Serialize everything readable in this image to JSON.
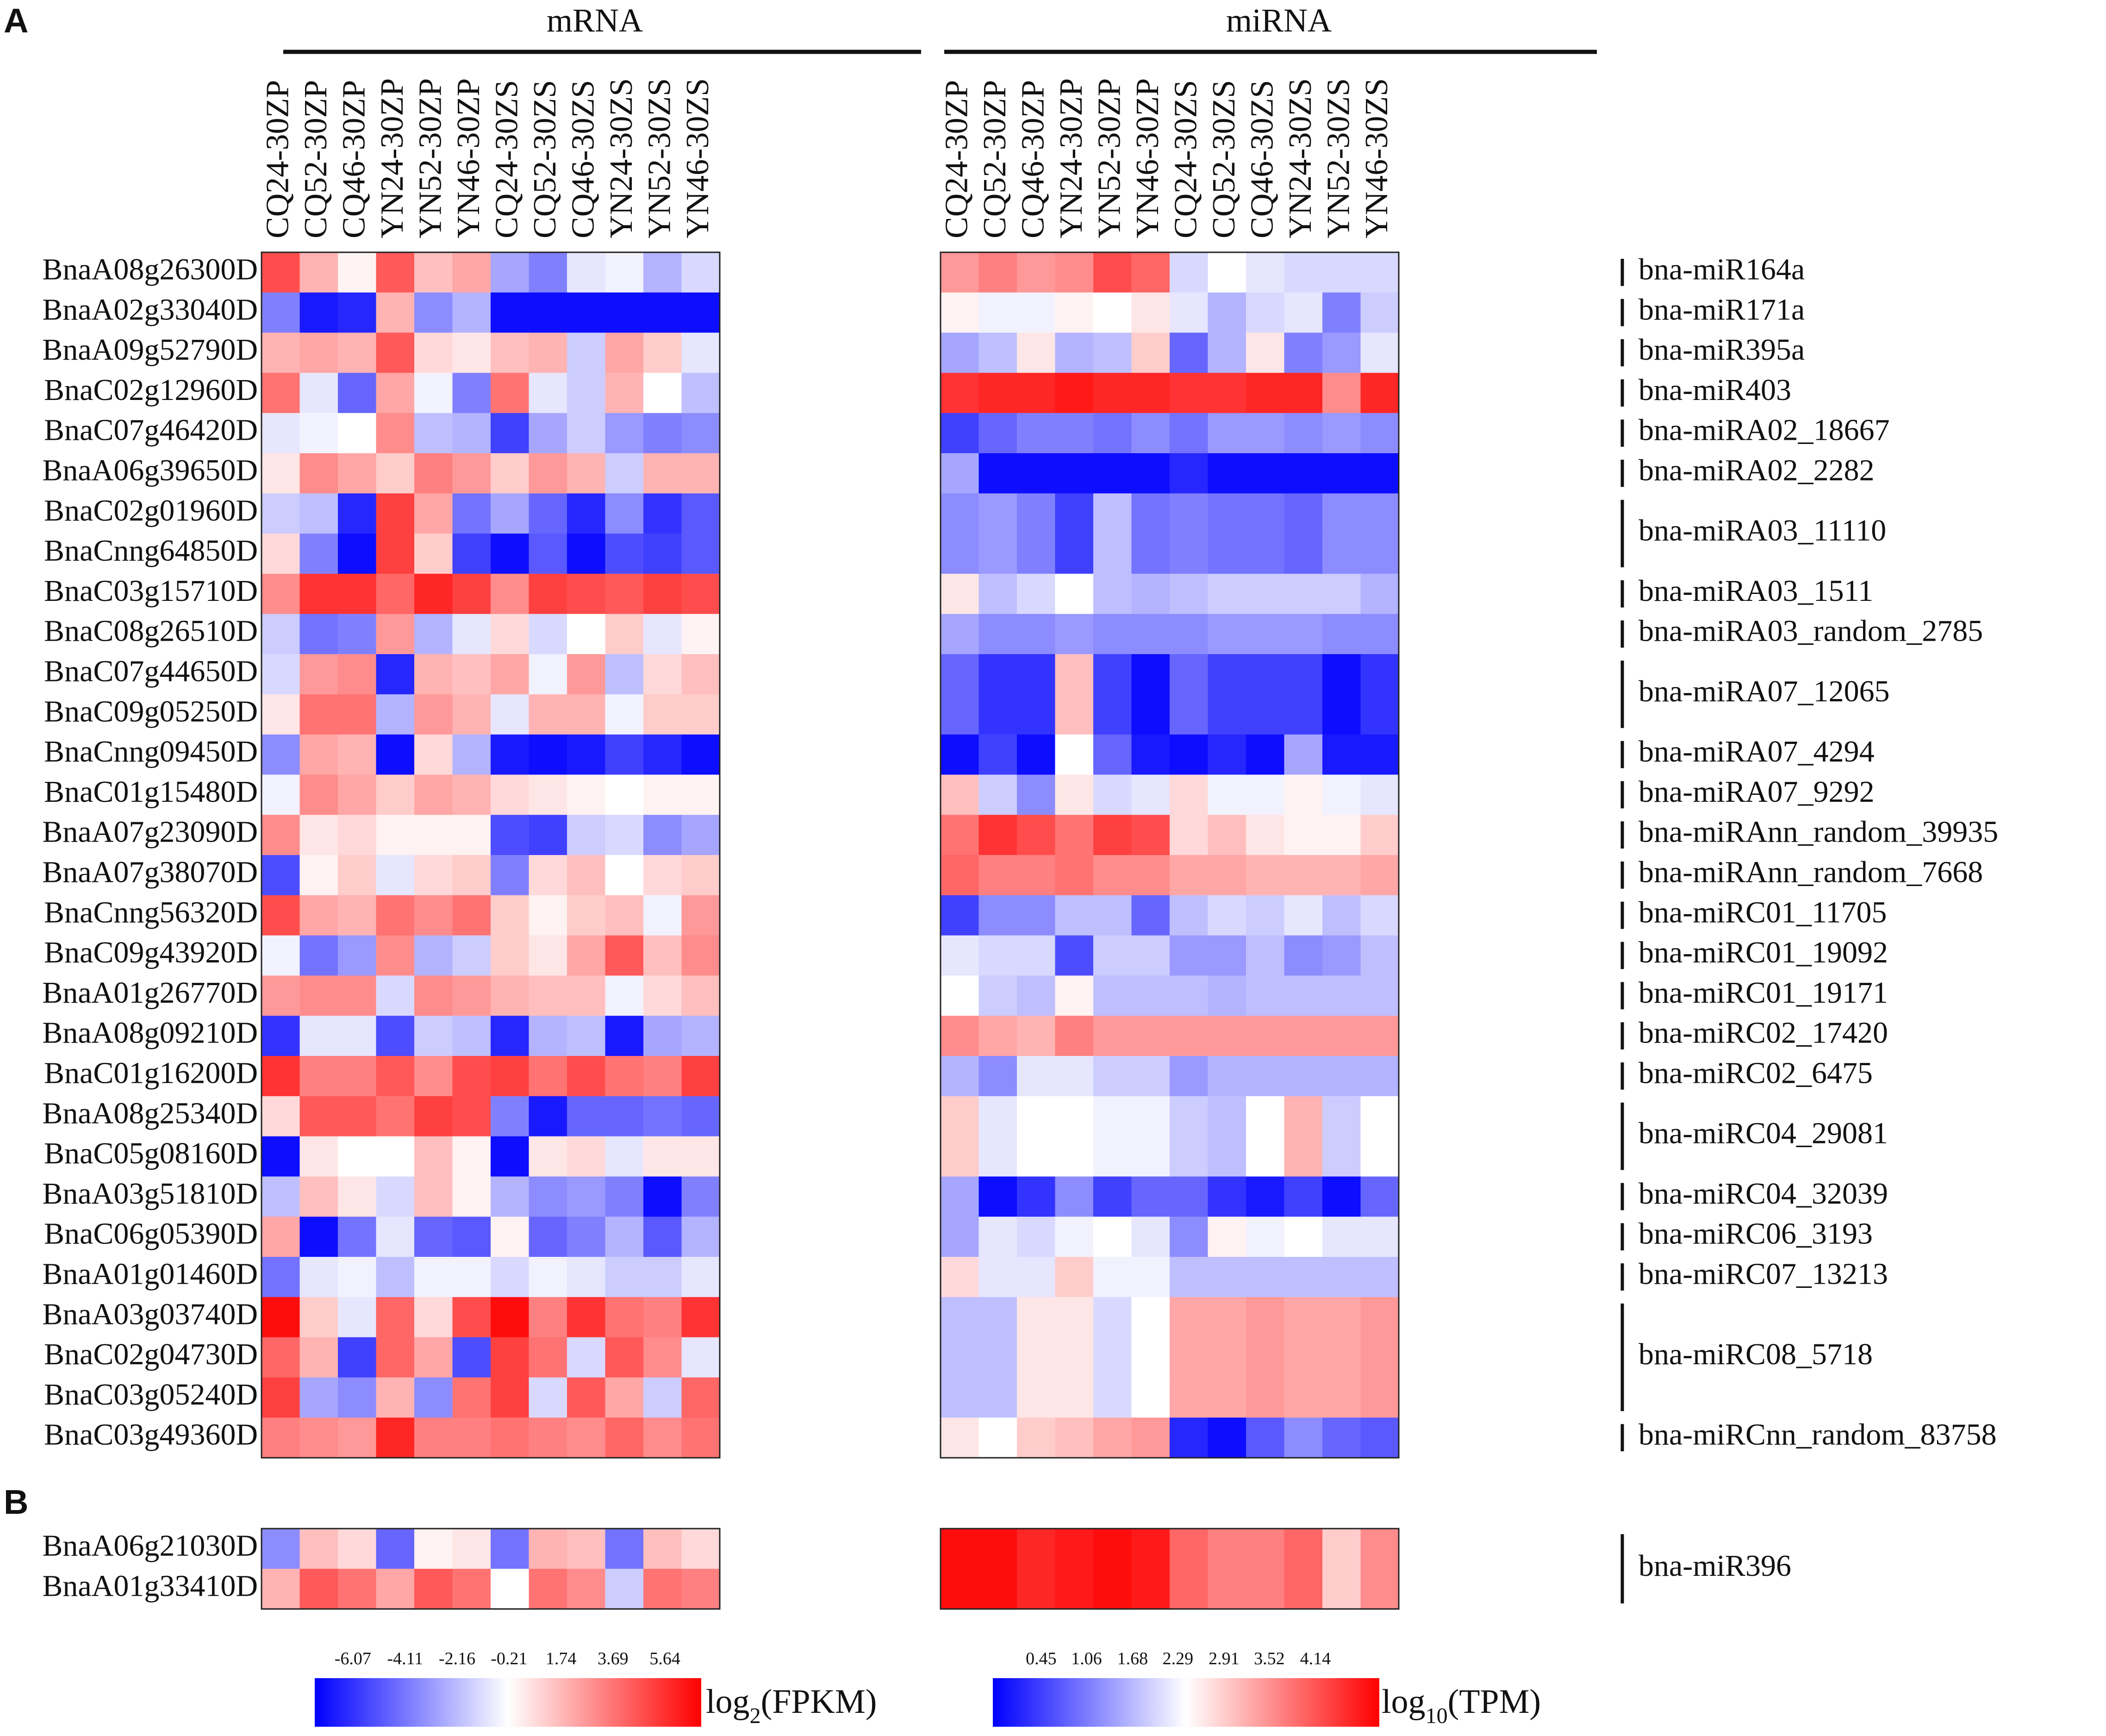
{
  "chart_data": {
    "type": "heatmap",
    "panel_labels": [
      "A",
      "B"
    ],
    "group_titles": {
      "mrna": "mRNA",
      "mirna": "miRNA"
    },
    "columns": [
      "CQ24-30ZP",
      "CQ52-30ZP",
      "CQ46-30ZP",
      "YN24-30ZP",
      "YN52-30ZP",
      "YN46-30ZP",
      "CQ24-30ZS",
      "CQ52-30ZS",
      "CQ46-30ZS",
      "YN24-30ZS",
      "YN52-30ZS",
      "YN46-30ZS"
    ],
    "panel_a": {
      "genes": [
        "BnaA08g26300D",
        "BnaA02g33040D",
        "BnaA09g52790D",
        "BnaC02g12960D",
        "BnaC07g46420D",
        "BnaA06g39650D",
        "BnaC02g01960D",
        "BnaCnng64850D",
        "BnaC03g15710D",
        "BnaC08g26510D",
        "BnaC07g44650D",
        "BnaC09g05250D",
        "BnaCnng09450D",
        "BnaC01g15480D",
        "BnaA07g23090D",
        "BnaA07g38070D",
        "BnaCnng56320D",
        "BnaC09g43920D",
        "BnaA01g26770D",
        "BnaA08g09210D",
        "BnaC01g16200D",
        "BnaA08g25340D",
        "BnaC05g08160D",
        "BnaA03g51810D",
        "BnaC06g05390D",
        "BnaA01g01460D",
        "BnaA03g03740D",
        "BnaC02g04730D",
        "BnaC03g05240D",
        "BnaC03g49360D"
      ],
      "mrna_values": [
        [
          0.7,
          0.3,
          0.05,
          0.65,
          0.25,
          0.35,
          -0.35,
          -0.5,
          -0.1,
          -0.05,
          -0.3,
          -0.15
        ],
        [
          -0.5,
          -0.9,
          -0.85,
          0.3,
          -0.45,
          -0.3,
          -0.95,
          -0.95,
          -0.95,
          -0.95,
          -0.95,
          -0.95
        ],
        [
          0.3,
          0.35,
          0.3,
          0.65,
          0.15,
          0.1,
          0.25,
          0.3,
          -0.2,
          0.35,
          0.2,
          -0.1
        ],
        [
          0.55,
          -0.1,
          -0.6,
          0.35,
          -0.05,
          -0.5,
          0.55,
          -0.1,
          -0.2,
          0.3,
          0.0,
          -0.25
        ],
        [
          -0.1,
          -0.05,
          0.0,
          0.45,
          -0.25,
          -0.3,
          -0.75,
          -0.35,
          -0.2,
          -0.4,
          -0.5,
          -0.45
        ],
        [
          0.1,
          0.45,
          0.35,
          0.2,
          0.5,
          0.4,
          0.2,
          0.4,
          0.3,
          -0.2,
          0.3,
          0.3
        ],
        [
          -0.2,
          -0.25,
          -0.85,
          0.75,
          0.35,
          -0.55,
          -0.35,
          -0.6,
          -0.85,
          -0.45,
          -0.8,
          -0.65
        ],
        [
          0.15,
          -0.5,
          -0.95,
          0.75,
          0.2,
          -0.75,
          -0.95,
          -0.65,
          -0.95,
          -0.7,
          -0.75,
          -0.65
        ],
        [
          0.45,
          0.8,
          0.8,
          0.6,
          0.85,
          0.75,
          0.45,
          0.75,
          0.7,
          0.65,
          0.75,
          0.7
        ],
        [
          -0.2,
          -0.55,
          -0.5,
          0.4,
          -0.3,
          -0.1,
          0.15,
          -0.15,
          0.0,
          0.2,
          -0.1,
          0.05
        ],
        [
          -0.15,
          0.4,
          0.45,
          -0.85,
          0.3,
          0.25,
          0.35,
          -0.05,
          0.4,
          -0.25,
          0.15,
          0.25
        ],
        [
          0.1,
          0.55,
          0.55,
          -0.3,
          0.4,
          0.3,
          -0.1,
          0.3,
          0.3,
          -0.05,
          0.2,
          0.2
        ],
        [
          -0.45,
          0.35,
          0.3,
          -0.95,
          0.15,
          -0.3,
          -0.9,
          -0.95,
          -0.9,
          -0.75,
          -0.85,
          -0.95
        ],
        [
          -0.05,
          0.45,
          0.35,
          0.2,
          0.35,
          0.3,
          0.15,
          0.1,
          0.05,
          0.0,
          0.05,
          0.05
        ],
        [
          0.45,
          0.1,
          0.15,
          0.05,
          0.05,
          0.05,
          -0.7,
          -0.75,
          -0.2,
          -0.15,
          -0.45,
          -0.35
        ],
        [
          -0.7,
          0.05,
          0.2,
          -0.1,
          0.15,
          0.2,
          -0.5,
          0.15,
          0.25,
          0.0,
          0.15,
          0.2
        ],
        [
          0.7,
          0.35,
          0.3,
          0.55,
          0.45,
          0.55,
          0.2,
          0.05,
          0.2,
          0.25,
          -0.05,
          0.4
        ],
        [
          -0.05,
          -0.55,
          -0.4,
          0.45,
          -0.3,
          -0.2,
          0.2,
          0.1,
          0.35,
          0.65,
          0.25,
          0.45
        ],
        [
          0.4,
          0.45,
          0.45,
          -0.15,
          0.45,
          0.4,
          0.3,
          0.25,
          0.25,
          -0.05,
          0.15,
          0.25
        ],
        [
          -0.8,
          -0.1,
          -0.1,
          -0.7,
          -0.2,
          -0.25,
          -0.85,
          -0.3,
          -0.25,
          -0.9,
          -0.35,
          -0.3
        ],
        [
          0.8,
          0.5,
          0.5,
          0.65,
          0.45,
          0.7,
          0.75,
          0.55,
          0.7,
          0.55,
          0.5,
          0.75
        ],
        [
          0.15,
          0.65,
          0.65,
          0.55,
          0.75,
          0.7,
          -0.5,
          -0.9,
          -0.6,
          -0.6,
          -0.55,
          -0.6
        ],
        [
          -0.95,
          0.1,
          0.0,
          0.0,
          0.25,
          0.05,
          -0.95,
          0.1,
          0.15,
          -0.1,
          0.1,
          0.1
        ],
        [
          -0.25,
          0.25,
          0.1,
          -0.15,
          0.25,
          0.05,
          -0.3,
          -0.45,
          -0.4,
          -0.5,
          -0.95,
          -0.5
        ],
        [
          0.35,
          -0.95,
          -0.55,
          -0.1,
          -0.6,
          -0.65,
          0.05,
          -0.6,
          -0.5,
          -0.3,
          -0.65,
          -0.3
        ],
        [
          -0.55,
          -0.1,
          -0.05,
          -0.25,
          -0.05,
          -0.05,
          -0.15,
          -0.05,
          -0.1,
          -0.2,
          -0.2,
          -0.1
        ],
        [
          0.95,
          0.2,
          -0.1,
          0.6,
          0.15,
          0.7,
          0.95,
          0.5,
          0.8,
          0.55,
          0.5,
          0.8
        ],
        [
          0.6,
          0.3,
          -0.75,
          0.6,
          0.35,
          -0.7,
          0.75,
          0.55,
          -0.15,
          0.65,
          0.45,
          -0.1
        ],
        [
          0.75,
          -0.35,
          -0.45,
          0.3,
          -0.45,
          0.55,
          0.75,
          -0.15,
          0.65,
          0.35,
          -0.2,
          0.6
        ],
        [
          0.5,
          0.45,
          0.4,
          0.85,
          0.5,
          0.5,
          0.55,
          0.5,
          0.45,
          0.6,
          0.45,
          0.55
        ]
      ],
      "mirnas": [
        {
          "name": "bna-miR164a",
          "rows": 1
        },
        {
          "name": "bna-miR171a",
          "rows": 1
        },
        {
          "name": "bna-miR395a",
          "rows": 1
        },
        {
          "name": "bna-miR403",
          "rows": 1
        },
        {
          "name": "bna-miRA02_18667",
          "rows": 1
        },
        {
          "name": "bna-miRA02_2282",
          "rows": 1
        },
        {
          "name": "bna-miRA03_11110",
          "rows": 2
        },
        {
          "name": "bna-miRA03_1511",
          "rows": 1
        },
        {
          "name": "bna-miRA03_random_2785",
          "rows": 1
        },
        {
          "name": "bna-miRA07_12065",
          "rows": 2
        },
        {
          "name": "bna-miRA07_4294",
          "rows": 1
        },
        {
          "name": "bna-miRA07_9292",
          "rows": 1
        },
        {
          "name": "bna-miRAnn_random_39935",
          "rows": 1
        },
        {
          "name": "bna-miRAnn_random_7668",
          "rows": 1
        },
        {
          "name": "bna-miRC01_11705",
          "rows": 1
        },
        {
          "name": "bna-miRC01_19092",
          "rows": 1
        },
        {
          "name": "bna-miRC01_19171",
          "rows": 1
        },
        {
          "name": "bna-miRC02_17420",
          "rows": 1
        },
        {
          "name": "bna-miRC02_6475",
          "rows": 1
        },
        {
          "name": "bna-miRC04_29081",
          "rows": 2
        },
        {
          "name": "bna-miRC04_32039",
          "rows": 1
        },
        {
          "name": "bna-miRC06_3193",
          "rows": 1
        },
        {
          "name": "bna-miRC07_13213",
          "rows": 1
        },
        {
          "name": "bna-miRC08_5718",
          "rows": 3
        },
        {
          "name": "bna-miRCnn_random_83758",
          "rows": 1
        }
      ],
      "mirna_values": [
        [
          0.4,
          0.5,
          0.4,
          0.45,
          0.7,
          0.6,
          -0.15,
          0.0,
          -0.1,
          -0.15,
          -0.15,
          -0.15
        ],
        [
          0.05,
          -0.05,
          -0.05,
          0.05,
          0.0,
          0.1,
          -0.1,
          -0.3,
          -0.15,
          -0.1,
          -0.5,
          -0.2
        ],
        [
          -0.35,
          -0.25,
          0.1,
          -0.3,
          -0.25,
          0.2,
          -0.6,
          -0.3,
          0.1,
          -0.5,
          -0.4,
          -0.1
        ],
        [
          0.8,
          0.85,
          0.85,
          0.9,
          0.85,
          0.85,
          0.8,
          0.8,
          0.85,
          0.85,
          0.45,
          0.85
        ],
        [
          -0.75,
          -0.6,
          -0.5,
          -0.5,
          -0.55,
          -0.45,
          -0.55,
          -0.4,
          -0.4,
          -0.45,
          -0.4,
          -0.45
        ],
        [
          -0.35,
          -0.95,
          -0.95,
          -0.95,
          -0.95,
          -0.95,
          -0.85,
          -0.95,
          -0.95,
          -0.95,
          -0.95,
          -0.95
        ],
        [
          -0.45,
          -0.4,
          -0.5,
          -0.75,
          -0.25,
          -0.55,
          -0.5,
          -0.55,
          -0.55,
          -0.6,
          -0.45,
          -0.45
        ],
        [
          -0.45,
          -0.4,
          -0.5,
          -0.75,
          -0.25,
          -0.55,
          -0.5,
          -0.55,
          -0.55,
          -0.6,
          -0.45,
          -0.45
        ],
        [
          0.1,
          -0.25,
          -0.15,
          0.0,
          -0.25,
          -0.3,
          -0.25,
          -0.2,
          -0.2,
          -0.2,
          -0.2,
          -0.3
        ],
        [
          -0.35,
          -0.45,
          -0.45,
          -0.4,
          -0.45,
          -0.45,
          -0.45,
          -0.4,
          -0.4,
          -0.4,
          -0.45,
          -0.45
        ],
        [
          -0.6,
          -0.8,
          -0.8,
          0.25,
          -0.75,
          -0.95,
          -0.6,
          -0.75,
          -0.75,
          -0.75,
          -0.95,
          -0.8
        ],
        [
          -0.6,
          -0.8,
          -0.8,
          0.25,
          -0.75,
          -0.95,
          -0.6,
          -0.75,
          -0.75,
          -0.75,
          -0.95,
          -0.8
        ],
        [
          -0.95,
          -0.75,
          -0.95,
          0.0,
          -0.6,
          -0.9,
          -0.95,
          -0.85,
          -0.95,
          -0.35,
          -0.9,
          -0.9
        ],
        [
          0.25,
          -0.2,
          -0.45,
          0.1,
          -0.15,
          -0.1,
          0.15,
          -0.05,
          -0.05,
          0.05,
          -0.05,
          -0.1
        ],
        [
          0.55,
          0.8,
          0.7,
          0.55,
          0.75,
          0.7,
          0.15,
          0.25,
          0.1,
          0.05,
          0.05,
          0.2
        ],
        [
          0.6,
          0.5,
          0.5,
          0.55,
          0.45,
          0.45,
          0.35,
          0.35,
          0.3,
          0.3,
          0.3,
          0.35
        ],
        [
          -0.75,
          -0.45,
          -0.45,
          -0.25,
          -0.25,
          -0.6,
          -0.25,
          -0.15,
          -0.2,
          -0.1,
          -0.25,
          -0.15
        ],
        [
          -0.1,
          -0.15,
          -0.15,
          -0.7,
          -0.2,
          -0.2,
          -0.4,
          -0.4,
          -0.25,
          -0.45,
          -0.4,
          -0.25
        ],
        [
          0.0,
          -0.2,
          -0.25,
          0.05,
          -0.25,
          -0.25,
          -0.25,
          -0.3,
          -0.25,
          -0.25,
          -0.25,
          -0.25
        ],
        [
          0.45,
          0.35,
          0.3,
          0.5,
          0.4,
          0.4,
          0.4,
          0.4,
          0.4,
          0.4,
          0.4,
          0.4
        ],
        [
          -0.3,
          -0.45,
          -0.1,
          -0.1,
          -0.2,
          -0.2,
          -0.4,
          -0.3,
          -0.3,
          -0.3,
          -0.3,
          -0.3
        ],
        [
          0.2,
          -0.1,
          0.0,
          0.0,
          -0.05,
          -0.05,
          -0.2,
          -0.25,
          0.0,
          0.3,
          -0.2,
          0.0
        ],
        [
          0.2,
          -0.1,
          0.0,
          0.0,
          -0.05,
          -0.05,
          -0.2,
          -0.25,
          0.0,
          0.3,
          -0.2,
          0.0
        ],
        [
          -0.35,
          -0.95,
          -0.8,
          -0.45,
          -0.75,
          -0.6,
          -0.6,
          -0.8,
          -0.9,
          -0.75,
          -0.95,
          -0.6
        ],
        [
          -0.35,
          -0.1,
          -0.15,
          -0.05,
          0.0,
          -0.1,
          -0.45,
          0.05,
          -0.05,
          0.0,
          -0.1,
          -0.1
        ],
        [
          0.15,
          -0.1,
          -0.1,
          0.2,
          -0.05,
          -0.05,
          -0.25,
          -0.25,
          -0.25,
          -0.25,
          -0.25,
          -0.25
        ],
        [
          -0.25,
          -0.25,
          0.1,
          0.1,
          -0.15,
          0.0,
          0.35,
          0.35,
          0.4,
          0.35,
          0.35,
          0.4
        ],
        [
          -0.25,
          -0.25,
          0.1,
          0.1,
          -0.15,
          0.0,
          0.35,
          0.35,
          0.4,
          0.35,
          0.35,
          0.4
        ],
        [
          -0.25,
          -0.25,
          0.1,
          0.1,
          -0.15,
          0.0,
          0.35,
          0.35,
          0.4,
          0.35,
          0.35,
          0.4
        ],
        [
          0.1,
          0.0,
          0.2,
          0.25,
          0.35,
          0.4,
          -0.85,
          -0.95,
          -0.65,
          -0.45,
          -0.6,
          -0.65
        ]
      ]
    },
    "panel_b": {
      "genes": [
        "BnaA06g21030D",
        "BnaA01g33410D"
      ],
      "mrna_values": [
        [
          -0.45,
          0.25,
          0.15,
          -0.6,
          0.05,
          0.1,
          -0.55,
          0.3,
          0.25,
          -0.55,
          0.25,
          0.15
        ],
        [
          0.3,
          0.65,
          0.55,
          0.35,
          0.65,
          0.55,
          0.0,
          0.55,
          0.45,
          -0.2,
          0.55,
          0.5
        ]
      ],
      "mirna": "bna-miR396",
      "mirna_values": [
        [
          0.95,
          0.95,
          0.85,
          0.9,
          0.95,
          0.9,
          0.6,
          0.5,
          0.5,
          0.6,
          0.2,
          0.45
        ],
        [
          0.95,
          0.95,
          0.85,
          0.9,
          0.95,
          0.9,
          0.6,
          0.5,
          0.5,
          0.6,
          0.2,
          0.45
        ]
      ]
    },
    "legends": [
      {
        "label_main": "log",
        "label_sub": "2",
        "label_rest": "(FPKM)",
        "ticks": [
          "-6.07",
          "-4.11",
          "-2.16",
          "-0.21",
          "1.74",
          "3.69",
          "5.64"
        ],
        "range": [
          -7.5,
          7.0
        ]
      },
      {
        "label_main": "log",
        "label_sub": "10",
        "label_rest": "(TPM)",
        "ticks": [
          "0.45",
          "1.06",
          "1.68",
          "2.29",
          "2.91",
          "3.52",
          "4.14"
        ],
        "range": [
          -0.2,
          5.0
        ]
      }
    ],
    "colorscale": {
      "low": "#0000ff",
      "mid": "#ffffff",
      "high": "#ff0000"
    }
  }
}
